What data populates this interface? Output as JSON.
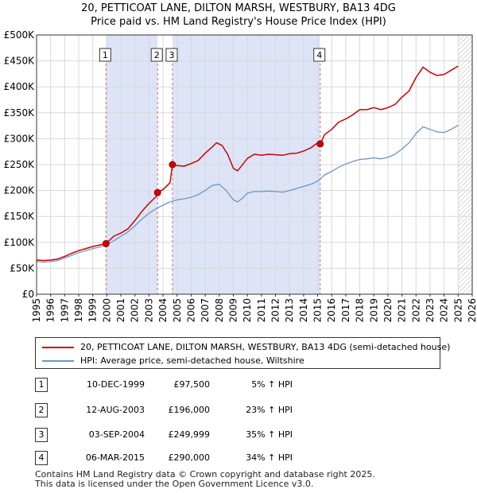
{
  "titles": {
    "line1": "20, PETTICOAT LANE, DILTON MARSH, WESTBURY, BA13 4DG",
    "line2": "Price paid vs. HM Land Registry's House Price Index (HPI)"
  },
  "colors": {
    "red": "#cc0000",
    "blue": "#6b96c8",
    "shade": "#dde4f7",
    "grid": "#d8d8d8",
    "marker_line": "#e06666"
  },
  "chart_data": {
    "type": "line",
    "title": "Price paid vs. HM Land Registry's House Price Index (HPI)",
    "xlabel": "",
    "ylabel": "",
    "xlim": [
      1995,
      2026
    ],
    "ylim": [
      0,
      500000
    ],
    "y_ticks": [
      0,
      50000,
      100000,
      150000,
      200000,
      250000,
      300000,
      350000,
      400000,
      450000,
      500000
    ],
    "y_tick_labels": [
      "£0",
      "£50K",
      "£100K",
      "£150K",
      "£200K",
      "£250K",
      "£300K",
      "£350K",
      "£400K",
      "£450K",
      "£500K"
    ],
    "x_ticks": [
      1995,
      1996,
      1997,
      1998,
      1999,
      2000,
      2001,
      2002,
      2003,
      2004,
      2005,
      2006,
      2007,
      2008,
      2009,
      2010,
      2011,
      2012,
      2013,
      2014,
      2015,
      2016,
      2017,
      2018,
      2019,
      2020,
      2021,
      2022,
      2023,
      2024,
      2025,
      2026
    ],
    "x_tick_labels": [
      "1995",
      "1996",
      "1997",
      "1998",
      "1999",
      "2000",
      "2001",
      "2002",
      "2003",
      "2004",
      "2005",
      "2006",
      "2007",
      "2008",
      "2009",
      "2010",
      "2011",
      "2012",
      "2013",
      "2014",
      "2015",
      "2016",
      "2017",
      "2018",
      "2019",
      "2020",
      "2021",
      "2022",
      "2023",
      "2024",
      "2025",
      "2026"
    ],
    "grid": true,
    "shaded_periods": [
      [
        1999.94,
        2003.61
      ],
      [
        2004.67,
        2015.18
      ]
    ],
    "hatch_from": 2025.0,
    "series": [
      {
        "name": "20, PETTICOAT LANE, DILTON MARSH, WESTBURY, BA13 4DG (semi-detached house)",
        "color": "red",
        "x": [
          1995.0,
          1995.5,
          1996.0,
          1996.5,
          1997.0,
          1997.5,
          1998.0,
          1998.5,
          1999.0,
          1999.5,
          1999.94,
          2000.5,
          2001.0,
          2001.5,
          2002.0,
          2002.5,
          2003.0,
          2003.6,
          2003.62,
          2004.0,
          2004.5,
          2004.67,
          2005.0,
          2005.5,
          2006.0,
          2006.5,
          2007.0,
          2007.5,
          2007.8,
          2008.2,
          2008.6,
          2009.0,
          2009.3,
          2009.6,
          2010.0,
          2010.5,
          2011.0,
          2011.5,
          2012.0,
          2012.5,
          2013.0,
          2013.5,
          2014.0,
          2014.5,
          2015.0,
          2015.18,
          2015.5,
          2016.0,
          2016.5,
          2017.0,
          2017.5,
          2018.0,
          2018.5,
          2019.0,
          2019.5,
          2020.0,
          2020.5,
          2021.0,
          2021.5,
          2022.0,
          2022.5,
          2023.0,
          2023.5,
          2024.0,
          2024.5,
          2025.0
        ],
        "values": [
          66000,
          65000,
          66000,
          68000,
          73000,
          79000,
          84000,
          88000,
          92000,
          95000,
          97500,
          112000,
          118000,
          126000,
          142000,
          160000,
          175000,
          191000,
          196000,
          202000,
          215000,
          249999,
          248000,
          247000,
          252000,
          258000,
          272000,
          284000,
          292000,
          287000,
          270000,
          243000,
          238000,
          248000,
          262000,
          270000,
          268000,
          270000,
          269000,
          268000,
          271000,
          272000,
          276000,
          282000,
          292000,
          290000,
          308000,
          318000,
          332000,
          338000,
          346000,
          356000,
          356000,
          360000,
          356000,
          360000,
          366000,
          380000,
          392000,
          418000,
          438000,
          428000,
          422000,
          424000,
          432000,
          440000
        ]
      },
      {
        "name": "HPI: Average price, semi-detached house, Wiltshire",
        "color": "blue",
        "x": [
          1995.0,
          1995.5,
          1996.0,
          1996.5,
          1997.0,
          1997.5,
          1998.0,
          1998.5,
          1999.0,
          1999.5,
          2000.0,
          2000.5,
          2001.0,
          2001.5,
          2002.0,
          2002.5,
          2003.0,
          2003.5,
          2004.0,
          2004.5,
          2005.0,
          2005.5,
          2006.0,
          2006.5,
          2007.0,
          2007.5,
          2008.0,
          2008.5,
          2009.0,
          2009.3,
          2009.6,
          2010.0,
          2010.5,
          2011.0,
          2011.5,
          2012.0,
          2012.5,
          2013.0,
          2013.5,
          2014.0,
          2014.5,
          2015.0,
          2015.5,
          2016.0,
          2016.5,
          2017.0,
          2017.5,
          2018.0,
          2018.5,
          2019.0,
          2019.5,
          2020.0,
          2020.5,
          2021.0,
          2021.5,
          2022.0,
          2022.5,
          2023.0,
          2023.5,
          2024.0,
          2024.5,
          2025.0
        ],
        "values": [
          63000,
          62000,
          63000,
          65000,
          70000,
          75000,
          80000,
          84000,
          88000,
          91000,
          96000,
          103000,
          112000,
          120000,
          132000,
          145000,
          156000,
          165000,
          172000,
          178000,
          182000,
          184000,
          187000,
          192000,
          200000,
          210000,
          212000,
          200000,
          182000,
          178000,
          184000,
          195000,
          198000,
          198000,
          199000,
          198000,
          197000,
          200000,
          204000,
          208000,
          212000,
          218000,
          230000,
          237000,
          245000,
          251000,
          256000,
          260000,
          261000,
          263000,
          261000,
          264000,
          270000,
          280000,
          292000,
          310000,
          323000,
          318000,
          313000,
          312000,
          318000,
          326000
        ]
      }
    ],
    "sales": [
      {
        "label": "1",
        "x": 1999.94,
        "value": 97500
      },
      {
        "label": "2",
        "x": 2003.61,
        "value": 196000
      },
      {
        "label": "3",
        "x": 2004.67,
        "value": 249999
      },
      {
        "label": "4",
        "x": 2015.18,
        "value": 290000
      }
    ]
  },
  "legend": {
    "red_label": "20, PETTICOAT LANE, DILTON MARSH, WESTBURY, BA13 4DG (semi-detached house)",
    "blue_label": "HPI: Average price, semi-detached house, Wiltshire"
  },
  "table": [
    {
      "num": "1",
      "date": "10-DEC-1999",
      "price": "£97,500",
      "hpi": "5% ↑ HPI"
    },
    {
      "num": "2",
      "date": "12-AUG-2003",
      "price": "£196,000",
      "hpi": "23% ↑ HPI"
    },
    {
      "num": "3",
      "date": "03-SEP-2004",
      "price": "£249,999",
      "hpi": "35% ↑ HPI"
    },
    {
      "num": "4",
      "date": "06-MAR-2015",
      "price": "£290,000",
      "hpi": "34% ↑ HPI"
    }
  ],
  "footer": {
    "line1": "Contains HM Land Registry data © Crown copyright and database right 2025.",
    "line2": "This data is licensed under the Open Government Licence v3.0."
  }
}
